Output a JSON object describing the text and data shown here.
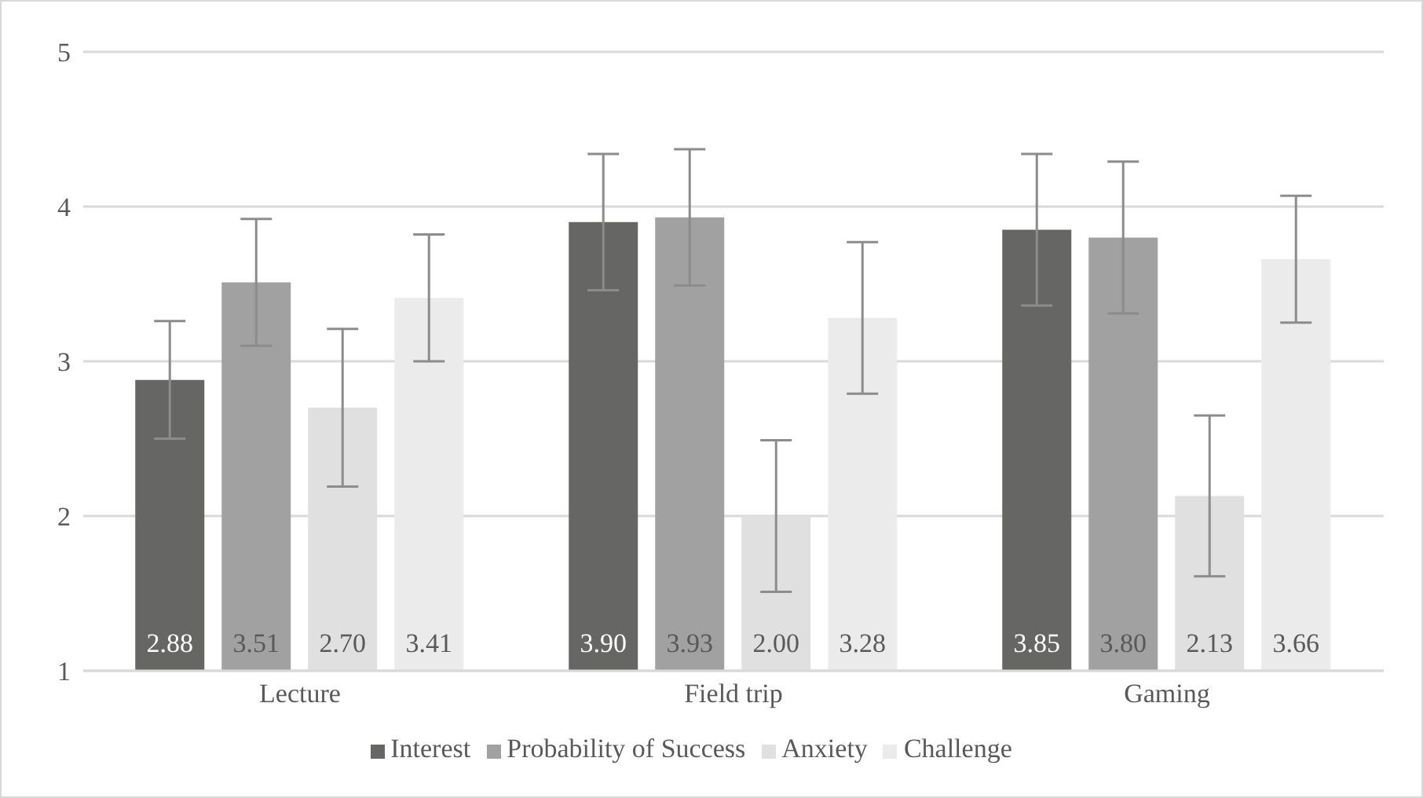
{
  "chart_data": {
    "type": "bar",
    "categories": [
      "Lecture",
      "Field trip",
      "Gaming"
    ],
    "series": [
      {
        "name": "Interest",
        "color": "#666665",
        "values": [
          2.88,
          3.9,
          3.85
        ],
        "errors": [
          0.38,
          0.44,
          0.49
        ],
        "value_labels": [
          "2.88",
          "3.90",
          "3.85"
        ]
      },
      {
        "name": "Probability of Success",
        "color": "#a0a1a0",
        "values": [
          3.51,
          3.93,
          3.8
        ],
        "errors": [
          0.41,
          0.44,
          0.49
        ],
        "value_labels": [
          "3.51",
          "3.93",
          "3.80"
        ]
      },
      {
        "name": "Anxiety",
        "color": "#dfe0df",
        "values": [
          2.7,
          2.0,
          2.13
        ],
        "errors": [
          0.51,
          0.49,
          0.52
        ],
        "value_labels": [
          "2.70",
          "2.00",
          "2.13"
        ]
      },
      {
        "name": "Challenge",
        "color": "#ebebeb",
        "values": [
          3.41,
          3.28,
          3.66
        ],
        "errors": [
          0.41,
          0.49,
          0.41
        ],
        "value_labels": [
          "3.41",
          "3.28",
          "3.66"
        ]
      }
    ],
    "ylim": [
      1,
      5
    ],
    "yticks": [
      1,
      2,
      3,
      4,
      5
    ],
    "grid": "y",
    "legend": "bottom"
  }
}
